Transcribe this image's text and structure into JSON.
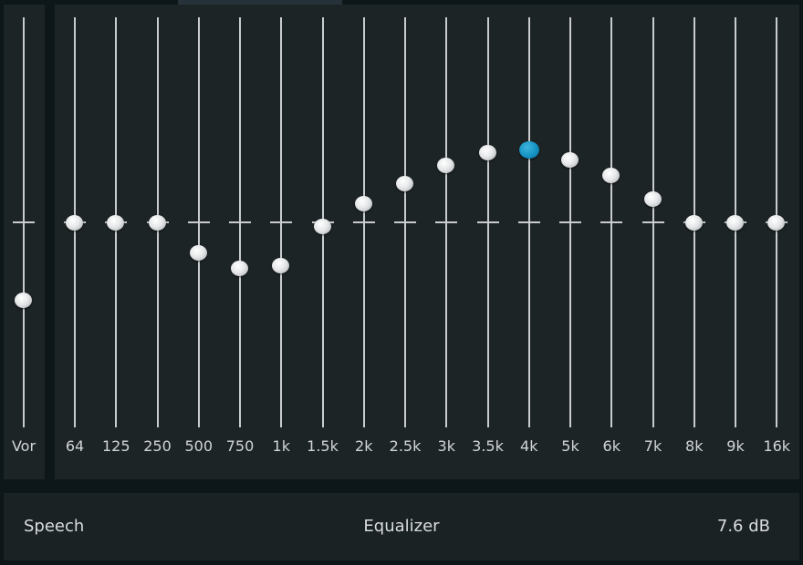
{
  "preamp": {
    "label": "Vor",
    "value_db": -7.6
  },
  "zero_db_index": 0,
  "bands": [
    {
      "label": "64",
      "value_db": 0.0
    },
    {
      "label": "125",
      "value_db": 0.0
    },
    {
      "label": "250",
      "value_db": 0.0
    },
    {
      "label": "500",
      "value_db": -3.0
    },
    {
      "label": "750",
      "value_db": -4.5
    },
    {
      "label": "1k",
      "value_db": -4.2
    },
    {
      "label": "1.5k",
      "value_db": -0.4
    },
    {
      "label": "2k",
      "value_db": 1.8
    },
    {
      "label": "2.5k",
      "value_db": 3.8
    },
    {
      "label": "3k",
      "value_db": 5.6
    },
    {
      "label": "3.5k",
      "value_db": 6.8
    },
    {
      "label": "4k",
      "value_db": 7.1,
      "active": true
    },
    {
      "label": "5k",
      "value_db": 6.1
    },
    {
      "label": "6k",
      "value_db": 4.6
    },
    {
      "label": "7k",
      "value_db": 2.3
    },
    {
      "label": "8k",
      "value_db": 0.0
    },
    {
      "label": "9k",
      "value_db": 0.0
    },
    {
      "label": "16k",
      "value_db": 0.0
    }
  ],
  "range_db": [
    -20,
    20
  ],
  "footer": {
    "preset": "Speech",
    "title": "Equalizer",
    "gain_readout": "7.6 dB"
  },
  "colors": {
    "panel": "#1d2426",
    "knob": "#e6e8e9",
    "knob_active": "#1593c3"
  }
}
